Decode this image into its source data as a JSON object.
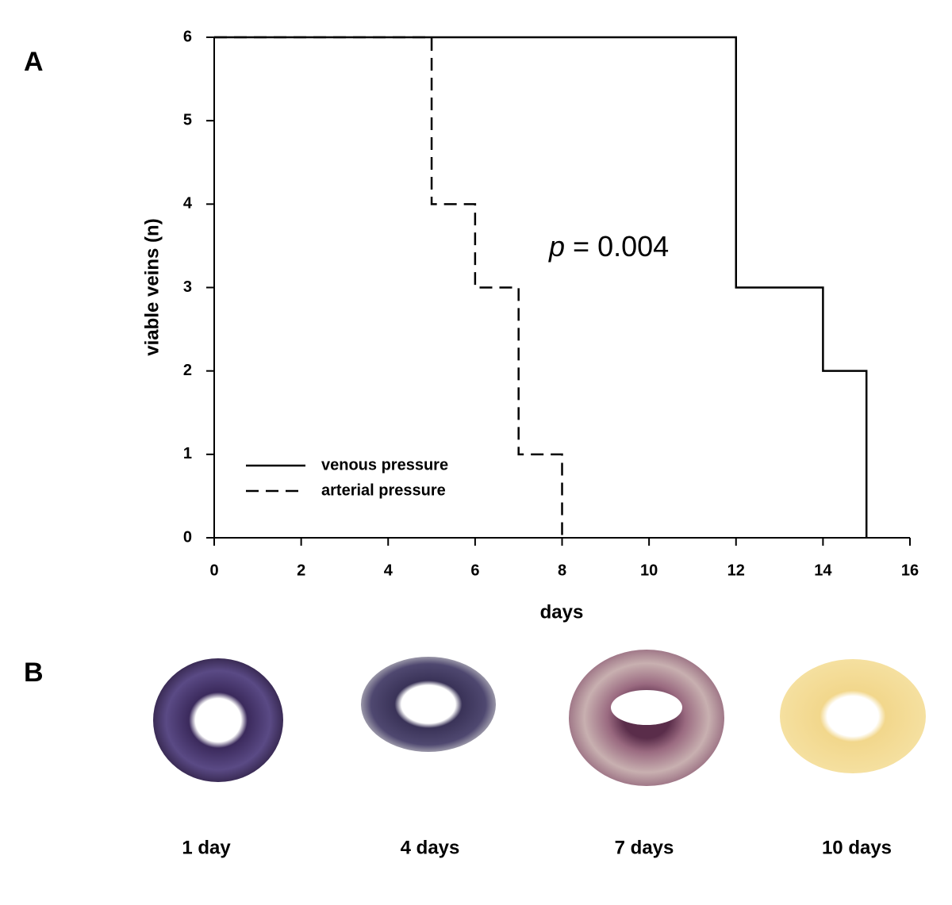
{
  "chart_data": {
    "type": "step",
    "panel_label": "A",
    "xlabel": "days",
    "ylabel": "viable veins (n)",
    "xlim": [
      0,
      16
    ],
    "xticks": [
      0,
      2,
      4,
      6,
      8,
      10,
      12,
      14,
      16
    ],
    "ylim": [
      0,
      6
    ],
    "yticks": [
      0,
      1,
      2,
      3,
      4,
      5,
      6
    ],
    "annotation": {
      "variable": "p",
      "text": "= 0.004"
    },
    "legend": "lower left",
    "series": [
      {
        "name": "venous pressure",
        "color": "#000000",
        "dash": "solid",
        "x": [
          0,
          12,
          14,
          15
        ],
        "values": [
          6,
          3,
          2,
          0
        ]
      },
      {
        "name": "arterial pressure",
        "color": "#000000",
        "dash": "dashed",
        "x": [
          0,
          5,
          6,
          7,
          8
        ],
        "values": [
          6,
          4,
          3,
          1,
          0
        ]
      }
    ]
  },
  "panel_b": {
    "label": "B",
    "captions": [
      "1 day",
      "4 days",
      "7 days",
      "10 days"
    ]
  }
}
